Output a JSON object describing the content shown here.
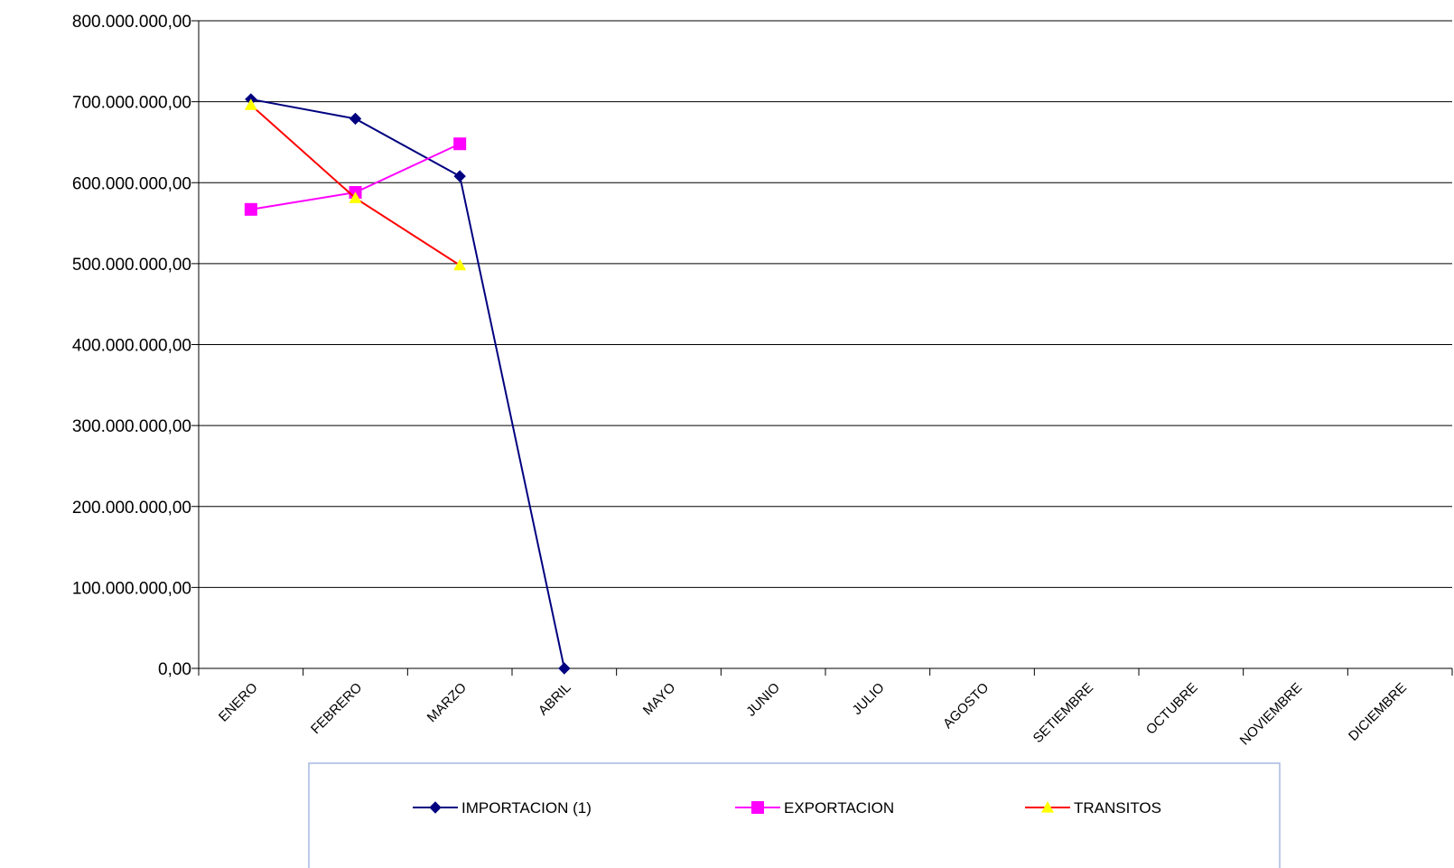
{
  "chart_data": {
    "type": "line",
    "categories": [
      "ENERO",
      "FEBRERO",
      "MARZO",
      "ABRIL",
      "MAYO",
      "JUNIO",
      "JULIO",
      "AGOSTO",
      "SETIEMBRE",
      "OCTUBRE",
      "NOVIEMBRE",
      "DICIEMBRE"
    ],
    "ylim": [
      0,
      800000000
    ],
    "yticks": [
      0,
      100000000,
      200000000,
      300000000,
      400000000,
      500000000,
      600000000,
      700000000,
      800000000
    ],
    "ytick_labels": [
      "0,00",
      "100.000.000,00",
      "200.000.000,00",
      "300.000.000,00",
      "400.000.000,00",
      "500.000.000,00",
      "600.000.000,00",
      "700.000.000,00",
      "800.000.000,00"
    ],
    "grid": true,
    "legend_position": "bottom",
    "series": [
      {
        "name": "IMPORTACION  (1)",
        "color": "#000080",
        "marker": "diamond",
        "values": [
          703000000,
          679000000,
          608000000,
          0,
          null,
          null,
          null,
          null,
          null,
          null,
          null,
          null
        ]
      },
      {
        "name": "EXPORTACION",
        "color": "#ff00ff",
        "marker": "square",
        "values": [
          567000000,
          588000000,
          648000000,
          null,
          null,
          null,
          null,
          null,
          null,
          null,
          null,
          null
        ]
      },
      {
        "name": "TRANSITOS",
        "color": "#ff0000",
        "marker_color": "#ffff00",
        "marker": "triangle",
        "values": [
          696000000,
          581000000,
          498000000,
          null,
          null,
          null,
          null,
          null,
          null,
          null,
          null,
          null
        ]
      }
    ]
  }
}
